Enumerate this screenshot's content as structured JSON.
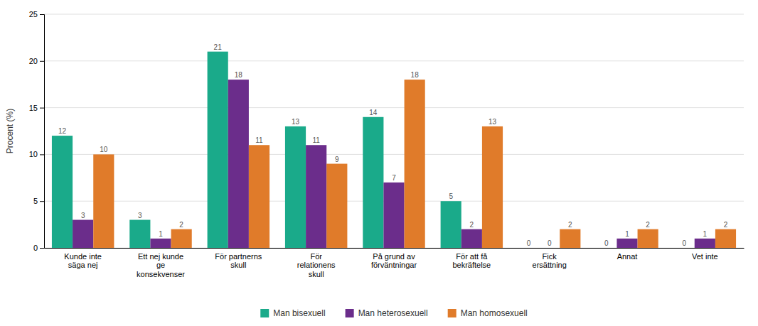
{
  "chart_data": {
    "type": "bar",
    "ylabel": "Procent (%)",
    "categories": [
      "Kunde inte\nsäga nej",
      "Ett nej kunde\nge\nkonsekvenser",
      "För partnerns\nskull",
      "För\nrelationens\nskull",
      "På grund av\nförväntningar",
      "För att få\nbekräftelse",
      "Fick\nersättning",
      "Annat",
      "Vet inte"
    ],
    "series": [
      {
        "name": "Man bisexuell",
        "color": "#1aaa8a",
        "values": [
          12,
          3,
          21,
          13,
          14,
          5,
          0,
          0,
          0
        ]
      },
      {
        "name": "Man heterosexuell",
        "color": "#6b2d8b",
        "values": [
          3,
          1,
          18,
          11,
          7,
          2,
          0,
          1,
          1
        ]
      },
      {
        "name": "Man homosexuell",
        "color": "#e07b2a",
        "values": [
          10,
          2,
          11,
          9,
          18,
          13,
          2,
          2,
          2
        ]
      }
    ],
    "ylim": [
      0,
      25
    ],
    "yticks": [
      0,
      5,
      10,
      15,
      20,
      25
    ],
    "grid": true,
    "data_labels": true,
    "legend": "bottom"
  }
}
